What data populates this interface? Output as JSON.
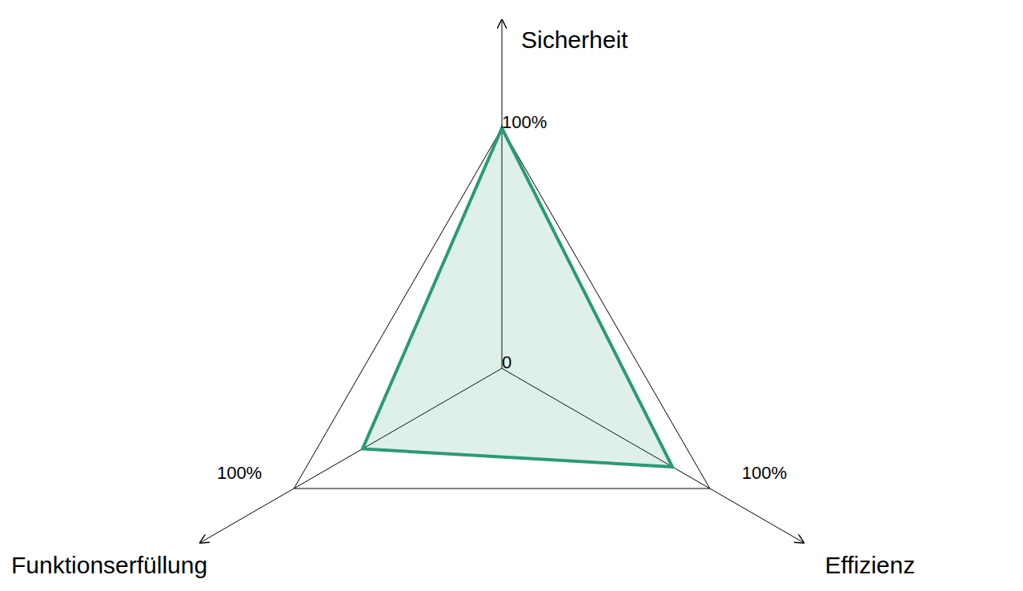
{
  "chart_data": {
    "type": "radar",
    "categories": [
      "Sicherheit",
      "Effizienz",
      "Funktionserfüllung"
    ],
    "values": [
      100,
      82,
      67
    ],
    "color": "#2a9a78",
    "ylim": [
      0,
      100
    ],
    "yticks": [
      0,
      {
        "value": 100,
        "label": "100%"
      }
    ],
    "grid": true
  }
}
